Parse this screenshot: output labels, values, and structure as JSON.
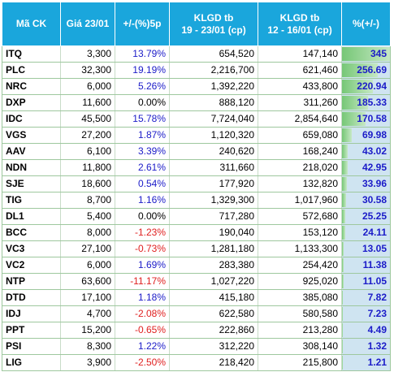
{
  "header": {
    "code": "Mã CK",
    "price": "Giá 23/01",
    "change": "+/-(%)5p",
    "vol1_line1": "KLGD tb",
    "vol1_line2": "19 - 23/01 (cp)",
    "vol2_line1": "KLGD tb",
    "vol2_line2": "12 - 16/01 (cp)",
    "pct": "%(+/-)"
  },
  "colors": {
    "header_bg": "#1aa6dc",
    "positive": "#1b1bc8",
    "negative": "#e02020",
    "neutral": "#000000",
    "bar_fill": "#76c776",
    "bar_bg": "#cfe4f1"
  },
  "bar_max": 345,
  "rows": [
    {
      "code": "ITQ",
      "price": "3,300",
      "change": "13.79%",
      "vol1": "654,520",
      "vol2": "147,140",
      "pct": "345",
      "pct_value": 345
    },
    {
      "code": "PLC",
      "price": "32,300",
      "change": "19.19%",
      "vol1": "2,216,700",
      "vol2": "621,460",
      "pct": "256.69",
      "pct_value": 256.69
    },
    {
      "code": "NRC",
      "price": "6,000",
      "change": "5.26%",
      "vol1": "1,392,220",
      "vol2": "433,800",
      "pct": "220.94",
      "pct_value": 220.94
    },
    {
      "code": "DXP",
      "price": "11,600",
      "change": "0.00%",
      "vol1": "888,120",
      "vol2": "311,260",
      "pct": "185.33",
      "pct_value": 185.33
    },
    {
      "code": "IDC",
      "price": "45,500",
      "change": "15.78%",
      "vol1": "7,724,040",
      "vol2": "2,854,640",
      "pct": "170.58",
      "pct_value": 170.58
    },
    {
      "code": "VGS",
      "price": "27,200",
      "change": "1.87%",
      "vol1": "1,120,320",
      "vol2": "659,080",
      "pct": "69.98",
      "pct_value": 69.98
    },
    {
      "code": "AAV",
      "price": "6,100",
      "change": "3.39%",
      "vol1": "240,620",
      "vol2": "168,240",
      "pct": "43.02",
      "pct_value": 43.02
    },
    {
      "code": "NDN",
      "price": "11,800",
      "change": "2.61%",
      "vol1": "311,660",
      "vol2": "218,020",
      "pct": "42.95",
      "pct_value": 42.95
    },
    {
      "code": "SJE",
      "price": "18,600",
      "change": "0.54%",
      "vol1": "177,920",
      "vol2": "132,820",
      "pct": "33.96",
      "pct_value": 33.96
    },
    {
      "code": "TIG",
      "price": "8,700",
      "change": "1.16%",
      "vol1": "1,329,300",
      "vol2": "1,017,960",
      "pct": "30.58",
      "pct_value": 30.58
    },
    {
      "code": "DL1",
      "price": "5,400",
      "change": "0.00%",
      "vol1": "717,280",
      "vol2": "572,680",
      "pct": "25.25",
      "pct_value": 25.25
    },
    {
      "code": "BCC",
      "price": "8,000",
      "change": "-1.23%",
      "vol1": "190,040",
      "vol2": "153,120",
      "pct": "24.11",
      "pct_value": 24.11
    },
    {
      "code": "VC3",
      "price": "27,100",
      "change": "-0.73%",
      "vol1": "1,281,180",
      "vol2": "1,133,300",
      "pct": "13.05",
      "pct_value": 13.05
    },
    {
      "code": "VC2",
      "price": "6,000",
      "change": "1.69%",
      "vol1": "283,380",
      "vol2": "254,420",
      "pct": "11.38",
      "pct_value": 11.38
    },
    {
      "code": "NTP",
      "price": "63,600",
      "change": "-11.17%",
      "vol1": "1,027,220",
      "vol2": "925,020",
      "pct": "11.05",
      "pct_value": 11.05
    },
    {
      "code": "DTD",
      "price": "17,100",
      "change": "1.18%",
      "vol1": "415,180",
      "vol2": "385,080",
      "pct": "7.82",
      "pct_value": 7.82
    },
    {
      "code": "IDJ",
      "price": "4,700",
      "change": "-2.08%",
      "vol1": "622,580",
      "vol2": "580,580",
      "pct": "7.23",
      "pct_value": 7.23
    },
    {
      "code": "PPT",
      "price": "15,200",
      "change": "-0.65%",
      "vol1": "222,860",
      "vol2": "213,280",
      "pct": "4.49",
      "pct_value": 4.49
    },
    {
      "code": "PSI",
      "price": "8,300",
      "change": "1.22%",
      "vol1": "312,220",
      "vol2": "308,140",
      "pct": "1.32",
      "pct_value": 1.32
    },
    {
      "code": "LIG",
      "price": "3,900",
      "change": "-2.50%",
      "vol1": "218,420",
      "vol2": "215,800",
      "pct": "1.21",
      "pct_value": 1.21
    }
  ]
}
